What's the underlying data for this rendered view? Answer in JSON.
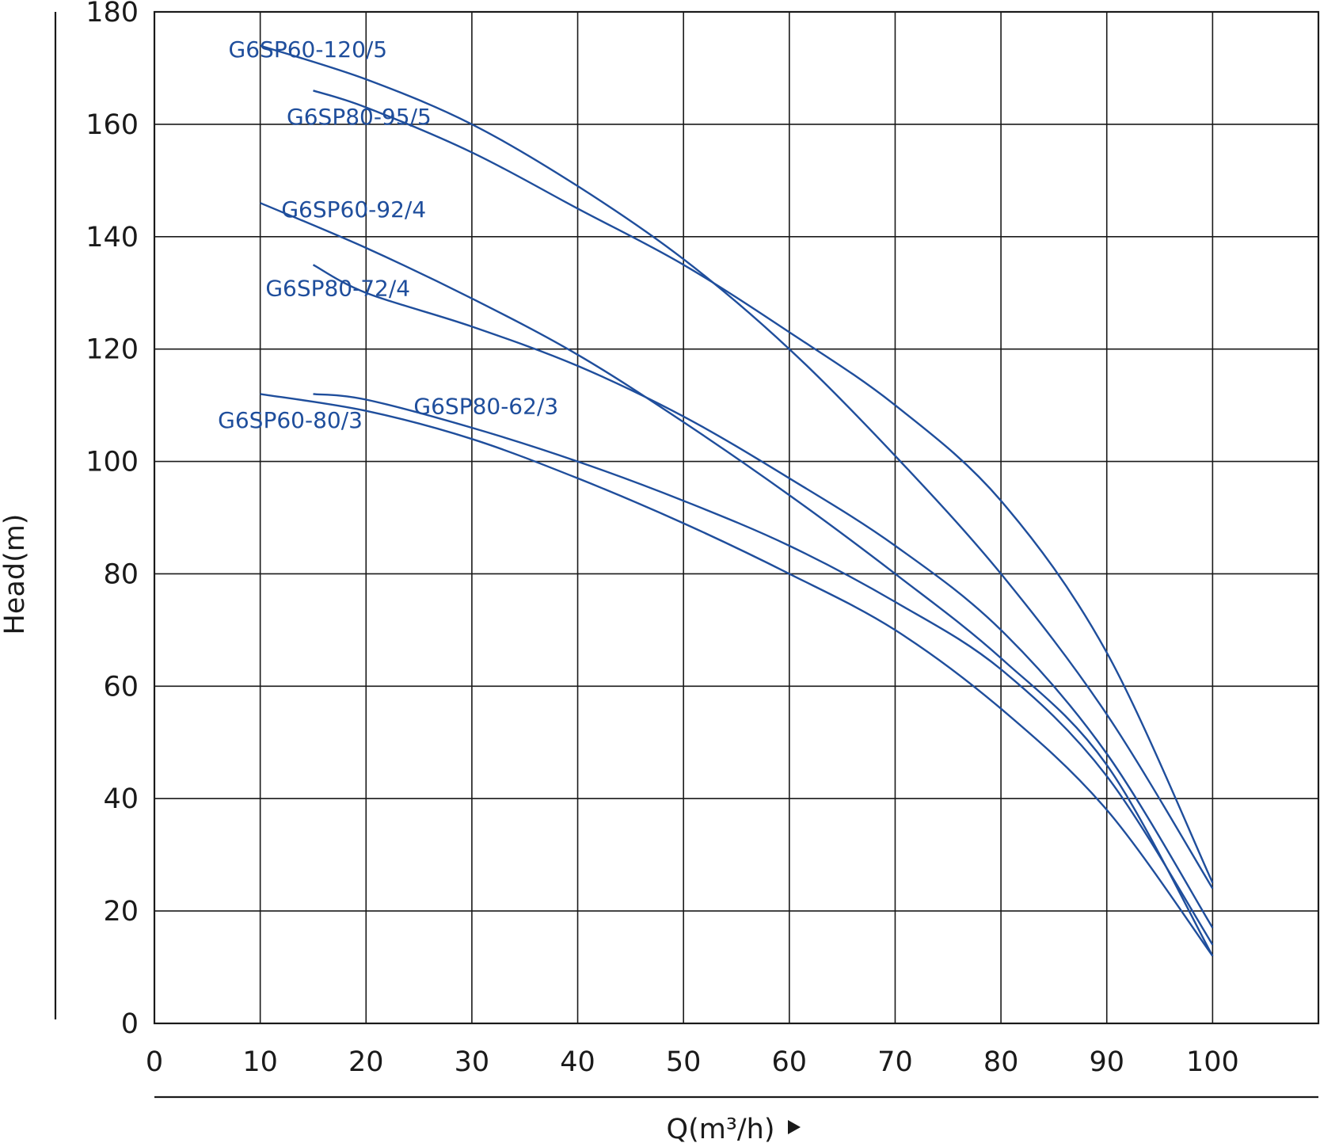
{
  "chart_data": {
    "type": "line",
    "xlabel": "Q(m³/h)",
    "ylabel": "Head(m)",
    "xlim": [
      0,
      110
    ],
    "ylim": [
      0,
      180
    ],
    "x_ticks": [
      0,
      10,
      20,
      30,
      40,
      50,
      60,
      70,
      80,
      90,
      100
    ],
    "y_ticks": [
      0,
      20,
      40,
      60,
      80,
      100,
      120,
      140,
      160,
      180
    ],
    "grid": true,
    "legend": "inline labels",
    "colors": {
      "series": "#1f4e9c",
      "grid": "#1a1a1a"
    },
    "series": [
      {
        "name": "G6SP60-120/5",
        "x": [
          10,
          20,
          30,
          40,
          50,
          60,
          70,
          80,
          90,
          100
        ],
        "y": [
          174,
          168,
          160,
          149,
          136,
          120,
          101,
          80,
          55,
          24
        ]
      },
      {
        "name": "G6SP80-95/5",
        "x": [
          15,
          20,
          30,
          40,
          50,
          60,
          70,
          80,
          90,
          100
        ],
        "y": [
          166,
          163,
          155,
          145,
          135,
          123,
          110,
          93,
          66,
          25
        ]
      },
      {
        "name": "G6SP60-92/4",
        "x": [
          10,
          20,
          30,
          40,
          50,
          60,
          70,
          80,
          90,
          100
        ],
        "y": [
          146,
          138,
          129,
          119,
          107,
          94,
          80,
          65,
          46,
          12
        ]
      },
      {
        "name": "G6SP80-72/4",
        "x": [
          15,
          20,
          30,
          40,
          50,
          60,
          70,
          80,
          90,
          100
        ],
        "y": [
          135,
          130,
          124,
          117,
          108,
          97,
          85,
          70,
          48,
          17
        ]
      },
      {
        "name": "G6SP60-80/3",
        "x": [
          10,
          20,
          30,
          40,
          50,
          60,
          70,
          80,
          90,
          100
        ],
        "y": [
          112,
          109,
          104,
          97,
          89,
          80,
          70,
          56,
          38,
          12
        ]
      },
      {
        "name": "G6SP80-62/3",
        "x": [
          15,
          20,
          30,
          40,
          50,
          60,
          70,
          80,
          90,
          100
        ],
        "y": [
          112,
          111,
          106,
          100,
          93,
          85,
          75,
          63,
          44,
          14
        ]
      }
    ]
  }
}
